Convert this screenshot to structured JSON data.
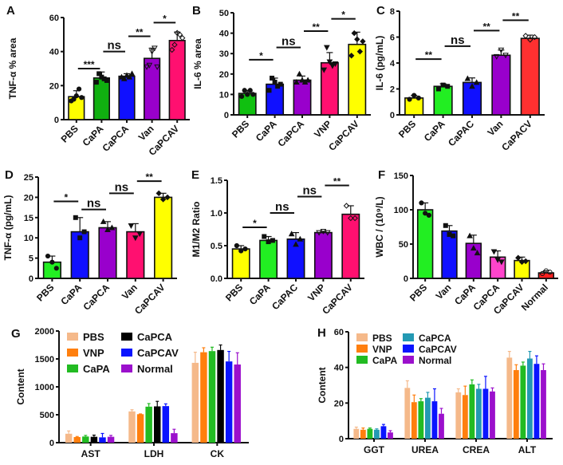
{
  "chart_data": [
    {
      "panel": "A",
      "type": "bar",
      "title": "",
      "xlabel": "",
      "ylabel": "TNF-α % area",
      "ylim": [
        0,
        60
      ],
      "yticks": [
        0,
        20,
        40,
        60
      ],
      "categories": [
        "PBS",
        "CaPA",
        "CaPCA",
        "Van",
        "CaPCAV"
      ],
      "values": [
        13.5,
        24.5,
        25.5,
        36,
        46.5
      ],
      "errors": [
        3.5,
        3.5,
        1.5,
        6,
        5
      ],
      "colors": [
        "#ffff00",
        "#10b010",
        "#1010ff",
        "#9900cc",
        "#ff1070"
      ],
      "points": [
        [
          11,
          12,
          14,
          18,
          13
        ],
        [
          22,
          27,
          25,
          24,
          23
        ],
        [
          25,
          24,
          26,
          25,
          27
        ],
        [
          31,
          32,
          40,
          42,
          31
        ],
        [
          41,
          44,
          51,
          50,
          48
        ]
      ],
      "significance": [
        {
          "from": 0,
          "to": 1,
          "label": "***",
          "y": 30
        },
        {
          "from": 1,
          "to": 2,
          "label": "ns",
          "y": 40
        },
        {
          "from": 2,
          "to": 3,
          "label": "**",
          "y": 49
        },
        {
          "from": 3,
          "to": 4,
          "label": "*",
          "y": 57
        }
      ]
    },
    {
      "panel": "B",
      "type": "bar",
      "ylabel": "IL-6 % area",
      "ylim": [
        0,
        50
      ],
      "yticks": [
        0,
        10,
        20,
        30,
        40,
        50
      ],
      "categories": [
        "PBS",
        "CaPA",
        "CaPCA",
        "VNP",
        "CaPCAV"
      ],
      "values": [
        10.5,
        15,
        17,
        25.5,
        34.5
      ],
      "errors": [
        1.5,
        3,
        2,
        5,
        6
      ],
      "colors": [
        "#10c010",
        "#1010ff",
        "#9900cc",
        "#ff1070",
        "#ffff00"
      ],
      "points": [
        [
          9,
          12,
          10,
          12,
          10
        ],
        [
          12,
          18,
          16,
          14,
          15
        ],
        [
          16,
          20,
          17,
          16,
          17
        ],
        [
          22,
          33,
          26,
          24,
          25
        ],
        [
          29,
          40,
          37,
          31,
          36
        ]
      ],
      "significance": [
        {
          "from": 0,
          "to": 1,
          "label": "*",
          "y": 27
        },
        {
          "from": 1,
          "to": 2,
          "label": "ns",
          "y": 33
        },
        {
          "from": 2,
          "to": 3,
          "label": "**",
          "y": 41
        },
        {
          "from": 3,
          "to": 4,
          "label": "*",
          "y": 47
        }
      ]
    },
    {
      "panel": "C",
      "type": "bar",
      "ylabel": "IL-6 (pg/mL)",
      "ylim": [
        0,
        8
      ],
      "yticks": [
        0,
        2,
        4,
        6,
        8
      ],
      "categories": [
        "PBS",
        "CaPA",
        "CaPAC",
        "Van",
        "CaPACV"
      ],
      "values": [
        1.3,
        2.2,
        2.5,
        4.6,
        5.9
      ],
      "errors": [
        0.2,
        0.2,
        0.35,
        0.4,
        0.25
      ],
      "colors": [
        "#ffff00",
        "#22ee22",
        "#1010ff",
        "#9900cc",
        "#ff3030"
      ],
      "points": [
        [
          1.2,
          1.5,
          1.3
        ],
        [
          2.0,
          2.3,
          2.2
        ],
        [
          2.8,
          2.2,
          2.5
        ],
        [
          4.5,
          5.0,
          4.6
        ],
        [
          6.1,
          5.8,
          6.0
        ]
      ],
      "significance": [
        {
          "from": 0,
          "to": 1,
          "label": "**",
          "y": 4.3
        },
        {
          "from": 1,
          "to": 2,
          "label": "ns",
          "y": 5.3
        },
        {
          "from": 2,
          "to": 3,
          "label": "**",
          "y": 6.5
        },
        {
          "from": 3,
          "to": 4,
          "label": "**",
          "y": 7.3
        }
      ]
    },
    {
      "panel": "D",
      "type": "bar",
      "ylabel": "TNF-α (pg/mL)",
      "ylim": [
        0,
        25
      ],
      "yticks": [
        0,
        5,
        10,
        15,
        20,
        25
      ],
      "categories": [
        "PBS",
        "CaPA",
        "CaPCA",
        "Van",
        "CaPCAV"
      ],
      "values": [
        4,
        11.5,
        12.5,
        11.5,
        20
      ],
      "errors": [
        1.5,
        3.5,
        1.5,
        2,
        1
      ],
      "colors": [
        "#22ee22",
        "#1010ff",
        "#9900cc",
        "#ff1070",
        "#ffff00"
      ],
      "points": [
        [
          5.5,
          4,
          2.5
        ],
        [
          15,
          10,
          11.5
        ],
        [
          14,
          12,
          12.5
        ],
        [
          13,
          10,
          11
        ],
        [
          21,
          19.5,
          20
        ]
      ],
      "significance": [
        {
          "from": 0,
          "to": 1,
          "label": "*",
          "y": 19
        },
        {
          "from": 1,
          "to": 2,
          "label": "ns",
          "y": 17
        },
        {
          "from": 2,
          "to": 3,
          "label": "ns",
          "y": 21
        },
        {
          "from": 3,
          "to": 4,
          "label": "**",
          "y": 24
        }
      ]
    },
    {
      "panel": "E",
      "type": "bar",
      "ylabel": "M1/M2 Ratio",
      "ylim": [
        0,
        1.5
      ],
      "yticks": [
        "0.0",
        "0.5",
        "1.0",
        "1.5"
      ],
      "categories": [
        "PBS",
        "CaPA",
        "CaPAC",
        "VNP",
        "CaPCAV"
      ],
      "values": [
        0.45,
        0.58,
        0.6,
        0.7,
        0.98
      ],
      "errors": [
        0.05,
        0.06,
        0.1,
        0.02,
        0.13
      ],
      "colors": [
        "#ffff00",
        "#22ee22",
        "#1010ff",
        "#9900cc",
        "#ff1070"
      ],
      "points": [
        [
          0.5,
          0.42,
          0.45
        ],
        [
          0.64,
          0.56,
          0.58
        ],
        [
          0.68,
          0.52,
          0.6
        ],
        [
          0.7,
          0.72,
          0.7
        ],
        [
          1.11,
          0.92,
          0.92
        ]
      ],
      "significance": [
        {
          "from": 0,
          "to": 1,
          "label": "*",
          "y": 0.78
        },
        {
          "from": 1,
          "to": 2,
          "label": "ns",
          "y": 1.0
        },
        {
          "from": 2,
          "to": 3,
          "label": "ns",
          "y": 1.25
        },
        {
          "from": 3,
          "to": 4,
          "label": "**",
          "y": 1.42
        }
      ]
    },
    {
      "panel": "F",
      "type": "bar",
      "ylabel": "WBC / (10⁹/L)",
      "ylim": [
        0,
        150
      ],
      "yticks": [
        0,
        50,
        100,
        150
      ],
      "categories": [
        "PBS",
        "Van",
        "CaPA",
        "CaPCA",
        "CaPCAV",
        "Normal"
      ],
      "values": [
        100,
        69,
        51,
        31,
        26,
        8
      ],
      "errors": [
        10,
        8,
        12,
        9,
        5,
        3
      ],
      "colors": [
        "#22ee22",
        "#1010ff",
        "#9900cc",
        "#ff44cc",
        "#ffff00",
        "#ff2020"
      ],
      "points": [
        [
          110,
          95,
          92
        ],
        [
          77,
          64,
          62
        ],
        [
          62,
          44,
          37
        ],
        [
          39,
          27,
          24
        ],
        [
          30,
          24,
          25
        ],
        [
          7,
          11,
          9
        ]
      ],
      "significance": []
    },
    {
      "panel": "G",
      "type": "bar",
      "ylabel": "Content",
      "ylim": [
        0,
        2000
      ],
      "yticks": [
        0,
        500,
        1000,
        1500,
        2000
      ],
      "categories": [
        "AST",
        "LDH",
        "CK"
      ],
      "legend": {
        "placement": "top-left"
      },
      "series": [
        {
          "name": "PBS",
          "color": "#f5b98a",
          "values": [
            160,
            560,
            1430
          ],
          "errors": [
            50,
            30,
            190
          ]
        },
        {
          "name": "VNP",
          "color": "#ff7f0e",
          "values": [
            100,
            510,
            1620
          ],
          "errors": [
            10,
            5,
            80
          ]
        },
        {
          "name": "CaPA",
          "color": "#22bb22",
          "values": [
            110,
            645,
            1640
          ],
          "errors": [
            20,
            55,
            70
          ]
        },
        {
          "name": "CaPCA",
          "color": "#000000",
          "values": [
            105,
            650,
            1660
          ],
          "errors": [
            30,
            90,
            90
          ]
        },
        {
          "name": "CaPCAV",
          "color": "#0a14ff",
          "values": [
            95,
            655,
            1455
          ],
          "errors": [
            70,
            40,
            180
          ]
        },
        {
          "name": "Normal",
          "color": "#9b10cc",
          "values": [
            105,
            170,
            1400
          ],
          "errors": [
            25,
            70,
            210
          ]
        }
      ]
    },
    {
      "panel": "H",
      "type": "bar",
      "ylabel": "Content",
      "ylim": [
        0,
        60
      ],
      "yticks": [
        0,
        20,
        40,
        60
      ],
      "categories": [
        "GGT",
        "UREA",
        "CREA",
        "ALT"
      ],
      "legend": {
        "placement": "top-left"
      },
      "series": [
        {
          "name": "PBS",
          "color": "#f5b98a",
          "values": [
            5.5,
            28.5,
            26,
            45.5
          ],
          "errors": [
            1,
            4,
            2,
            3.5
          ]
        },
        {
          "name": "VNP",
          "color": "#ff7f0e",
          "values": [
            5,
            20.5,
            24.5,
            38.5
          ],
          "errors": [
            1,
            4,
            5,
            3
          ]
        },
        {
          "name": "CaPA",
          "color": "#22bb22",
          "values": [
            5.5,
            21,
            30.5,
            41
          ],
          "errors": [
            0.5,
            1.5,
            2.5,
            2
          ]
        },
        {
          "name": "CaPCA",
          "color": "#2399b3",
          "values": [
            5,
            23,
            28,
            45
          ],
          "errors": [
            0.5,
            3,
            2.5,
            4
          ]
        },
        {
          "name": "CaPCAV",
          "color": "#0a14ff",
          "values": [
            7,
            21,
            28,
            42
          ],
          "errors": [
            1,
            7,
            7,
            4.5
          ]
        },
        {
          "name": "Normal",
          "color": "#9b10cc",
          "values": [
            3.5,
            14,
            26.5,
            38.5
          ],
          "errors": [
            1,
            3,
            2,
            3.5
          ]
        }
      ]
    }
  ]
}
